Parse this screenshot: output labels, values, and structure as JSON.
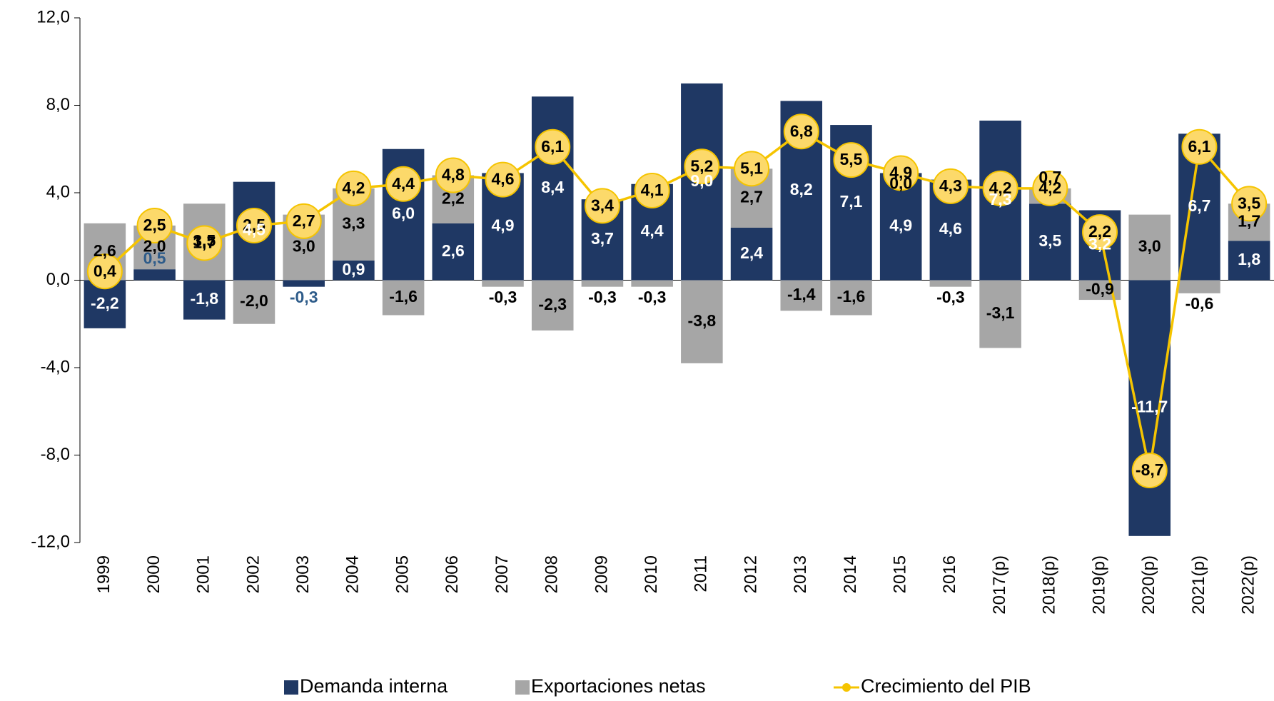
{
  "chart_data": {
    "type": "bar",
    "categories": [
      "1999",
      "2000",
      "2001",
      "2002",
      "2003",
      "2004",
      "2005",
      "2006",
      "2007",
      "2008",
      "2009",
      "2010",
      "2011",
      "2012",
      "2013",
      "2014",
      "2015",
      "2016",
      "2017(p)",
      "2018(p)",
      "2019(p)",
      "2020(p)",
      "2021(p)",
      "2022(p)"
    ],
    "series": [
      {
        "name": "Demanda interna",
        "color": "#1f3864",
        "values": [
          -2.2,
          0.5,
          -1.8,
          4.5,
          -0.3,
          0.9,
          6.0,
          2.6,
          4.9,
          8.4,
          3.7,
          4.4,
          9.0,
          2.4,
          8.2,
          7.1,
          4.9,
          4.6,
          7.3,
          3.5,
          3.2,
          -11.7,
          6.7,
          1.8
        ],
        "value_labels": [
          "-2,2",
          "0,5",
          "-1,8",
          "4,5",
          "-0,3",
          "0,9",
          "6,0",
          "2,6",
          "4,9",
          "8,4",
          "3,7",
          "4,4",
          "9,0",
          "2,4",
          "8,2",
          "7,1",
          "4,9",
          "4,6",
          "7,3",
          "3,5",
          "3,2",
          "-11,7",
          "6,7",
          "1,8"
        ]
      },
      {
        "name": "Exportaciones netas",
        "color": "#a6a6a6",
        "values": [
          2.6,
          2.0,
          3.5,
          -2.0,
          3.0,
          3.3,
          -1.6,
          2.2,
          -0.3,
          -2.3,
          -0.3,
          -0.3,
          -3.8,
          2.7,
          -1.4,
          -1.6,
          0.0,
          -0.3,
          -3.1,
          0.7,
          -0.9,
          3.0,
          -0.6,
          1.7
        ],
        "value_labels": [
          "2,6",
          "2,0",
          "3,5",
          "-2,0",
          "3,0",
          "3,3",
          "-1,6",
          "2,2",
          "-0,3",
          "-2,3",
          "-0,3",
          "-0,3",
          "-3,8",
          "2,7",
          "-1,4",
          "-1,6",
          "0,0",
          "-0,3",
          "-3,1",
          "0,7",
          "-0,9",
          "3,0",
          "-0,6",
          "1,7"
        ]
      },
      {
        "name": "Crecimiento del PIB",
        "color": "#f5c400",
        "type": "line",
        "values": [
          0.4,
          2.5,
          1.7,
          2.5,
          2.7,
          4.2,
          4.4,
          4.8,
          4.6,
          6.1,
          3.4,
          4.1,
          5.2,
          5.1,
          6.8,
          5.5,
          4.9,
          4.3,
          4.2,
          4.2,
          2.2,
          -8.7,
          6.1,
          3.5
        ],
        "value_labels": [
          "0,4",
          "2,5",
          "1,7",
          "2,5",
          "2,7",
          "4,2",
          "4,4",
          "4,8",
          "4,6",
          "6,1",
          "3,4",
          "4,1",
          "5,2",
          "5,1",
          "6,8",
          "5,5",
          "4,9",
          "4,3",
          "4,2",
          "4,2",
          "2,2",
          "-8,7",
          "6,1",
          "3,5"
        ]
      }
    ],
    "ylim": [
      -12,
      12
    ],
    "yticks": [
      {
        "value": -12,
        "label": "-12,0"
      },
      {
        "value": -8,
        "label": "-8,0"
      },
      {
        "value": -4,
        "label": "-4,0"
      },
      {
        "value": 0,
        "label": "0,0"
      },
      {
        "value": 4,
        "label": "4,0"
      },
      {
        "value": 8,
        "label": "8,0"
      },
      {
        "value": 12,
        "label": "12,0"
      }
    ],
    "legend": "bottom"
  }
}
